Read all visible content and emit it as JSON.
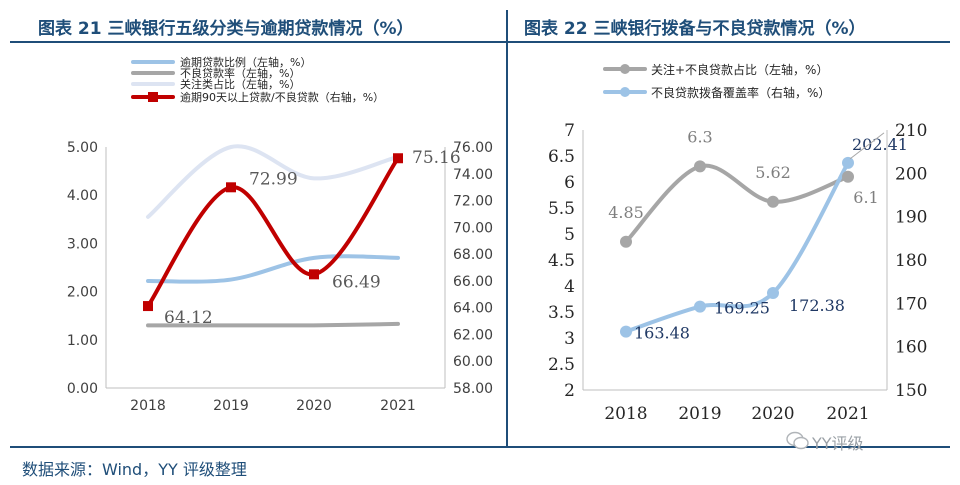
{
  "chart_data": [
    {
      "type": "line",
      "title": "图表 21 三峡银行五级分类与逾期贷款情况（%）",
      "categories": [
        "2018",
        "2019",
        "2020",
        "2021"
      ],
      "left_axis": {
        "range": [
          0,
          5
        ],
        "ticks": [
          "0.00",
          "1.00",
          "2.00",
          "3.00",
          "4.00",
          "5.00"
        ]
      },
      "right_axis": {
        "range": [
          58,
          76
        ],
        "ticks": [
          "58.00",
          "60.00",
          "62.00",
          "64.00",
          "66.00",
          "68.00",
          "70.00",
          "72.00",
          "74.00",
          "76.00"
        ]
      },
      "series": [
        {
          "name": "逾期贷款比例（左轴，%）",
          "axis": "left",
          "color": "#9dc3e6",
          "values": [
            2.22,
            2.25,
            2.7,
            2.7
          ]
        },
        {
          "name": "不良贷款率（左轴，%）",
          "axis": "left",
          "color": "#a6a6a6",
          "values": [
            1.3,
            1.3,
            1.3,
            1.33
          ]
        },
        {
          "name": "关注类占比（左轴，%）",
          "axis": "left",
          "color": "#dde4f2",
          "values": [
            3.55,
            5.0,
            4.35,
            4.8
          ]
        },
        {
          "name": "逾期90天以上贷款/不良贷款（右轴，%）",
          "axis": "right",
          "color": "#c00000",
          "values": [
            64.12,
            72.99,
            66.49,
            75.16
          ],
          "labels": [
            "64.12",
            "72.99",
            "66.49",
            "75.16"
          ]
        }
      ]
    },
    {
      "type": "line",
      "title": "图表 22 三峡银行拨备与不良贷款情况（%）",
      "categories": [
        "2018",
        "2019",
        "2020",
        "2021"
      ],
      "left_axis": {
        "range": [
          2,
          7
        ],
        "ticks": [
          "2",
          "2.5",
          "3",
          "3.5",
          "4",
          "4.5",
          "5",
          "5.5",
          "6",
          "6.5",
          "7"
        ]
      },
      "right_axis": {
        "range": [
          150,
          210
        ],
        "ticks": [
          "150",
          "160",
          "170",
          "180",
          "190",
          "200",
          "210"
        ]
      },
      "series": [
        {
          "name": "关注+不良贷款占比（左轴，%）",
          "axis": "left",
          "color": "#a6a6a6",
          "values": [
            4.85,
            6.3,
            5.62,
            6.1
          ],
          "labels": [
            "4.85",
            "6.3",
            "5.62",
            "6.1"
          ]
        },
        {
          "name": "不良贷款拨备覆盖率（右轴，%）",
          "axis": "right",
          "color": "#9dc3e6",
          "values": [
            163.48,
            169.25,
            172.38,
            202.41
          ],
          "labels": [
            "163.48",
            "169.25",
            "172.38",
            "202.41"
          ]
        }
      ]
    }
  ],
  "footer": {
    "source": "数据来源：Wind，YY 评级整理",
    "watermark": "YY评级"
  }
}
